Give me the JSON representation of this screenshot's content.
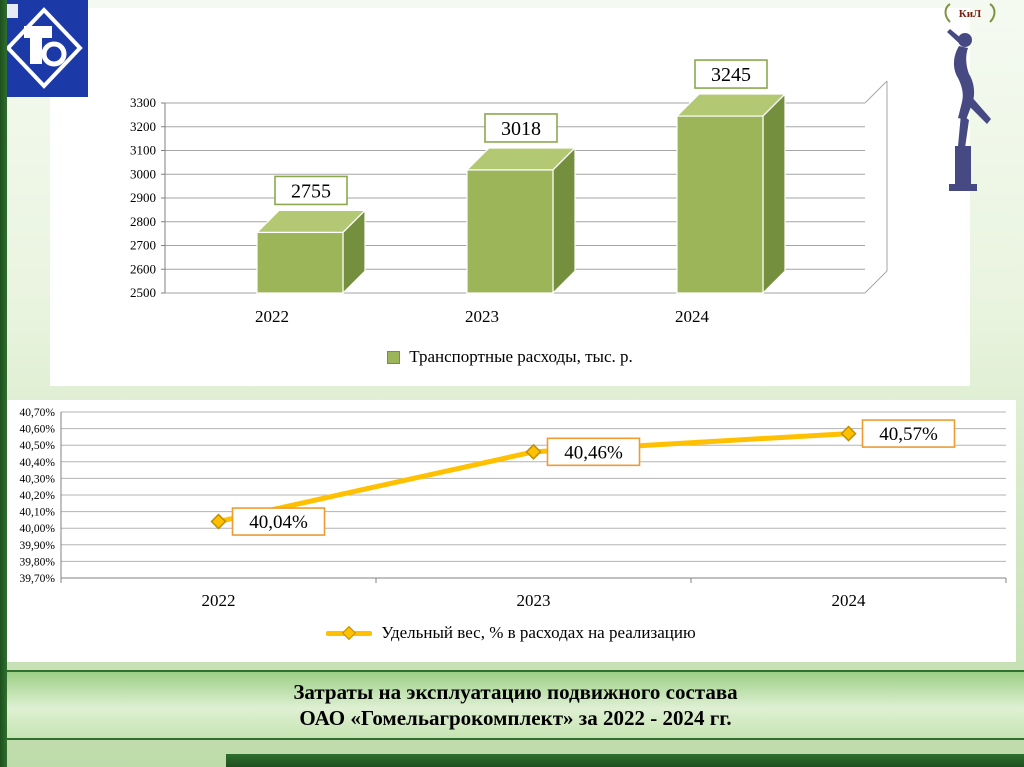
{
  "slide": {
    "emblem_text": "КиЛ"
  },
  "title": {
    "line1": "Затраты на эксплуатацию подвижного состава",
    "line2": "ОАО «Гомельагрокомплект» за 2022 - 2024 гг."
  },
  "colors": {
    "bar_front": "#9bb558",
    "bar_top": "#b3c873",
    "bar_side": "#748f3e",
    "bar_label_border": "#8aa84e",
    "line_orange": "#ffc000",
    "line_marker_border": "#bf9000",
    "line_label_border": "#ed9b33",
    "border_dark_green": "#2f6f2f"
  },
  "chart_data": [
    {
      "type": "bar",
      "style": "3d",
      "categories": [
        "2022",
        "2023",
        "2024"
      ],
      "values": [
        2755,
        3018,
        3245
      ],
      "data_labels": [
        "2755",
        "3018",
        "3245"
      ],
      "legend": "Транспортные расходы, тыс. р.",
      "legend_position": "bottom",
      "ylim": [
        2500,
        3300
      ],
      "ytick_step": 100,
      "yticks": [
        "3300",
        "3200",
        "3100",
        "3000",
        "2900",
        "2800",
        "2700",
        "2600",
        "2500"
      ],
      "grid": true
    },
    {
      "type": "line",
      "categories": [
        "2022",
        "2023",
        "2024"
      ],
      "values": [
        40.04,
        40.46,
        40.57
      ],
      "data_labels": [
        "40,04%",
        "40,46%",
        "40,57%"
      ],
      "legend": "Удельный вес, % в расходах на реализацию",
      "legend_position": "bottom",
      "ylim": [
        39.7,
        40.7
      ],
      "ytick_step": 0.1,
      "yticks": [
        "40,70%",
        "40,60%",
        "40,50%",
        "40,40%",
        "40,30%",
        "40,20%",
        "40,10%",
        "40,00%",
        "39,90%",
        "39,80%",
        "39,70%"
      ],
      "grid": true
    }
  ]
}
